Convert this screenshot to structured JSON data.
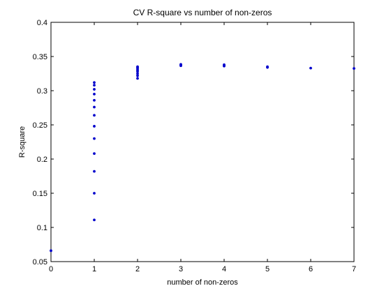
{
  "chart_data": {
    "type": "scatter",
    "title": "CV R-square vs number of non-zeros",
    "xlabel": "number of non-zeros",
    "ylabel": "R-square",
    "xlim": [
      0,
      7
    ],
    "ylim": [
      0.05,
      0.4
    ],
    "xticks": [
      "0",
      "1",
      "2",
      "3",
      "4",
      "5",
      "6",
      "7"
    ],
    "xtick_values": [
      0,
      1,
      2,
      3,
      4,
      5,
      6,
      7
    ],
    "yticks": [
      "0.05",
      "0.1",
      "0.15",
      "0.2",
      "0.25",
      "0.3",
      "0.35",
      "0.4"
    ],
    "ytick_values": [
      0.05,
      0.1,
      0.15,
      0.2,
      0.25,
      0.3,
      0.35,
      0.4
    ],
    "grid": false,
    "marker_color": "#0000cc",
    "points": [
      [
        0,
        0.066
      ],
      [
        1,
        0.111
      ],
      [
        1,
        0.15
      ],
      [
        1,
        0.182
      ],
      [
        1,
        0.208
      ],
      [
        1,
        0.23
      ],
      [
        1,
        0.248
      ],
      [
        1,
        0.264
      ],
      [
        1,
        0.276
      ],
      [
        1,
        0.286
      ],
      [
        1,
        0.295
      ],
      [
        1,
        0.302
      ],
      [
        1,
        0.308
      ],
      [
        1,
        0.312
      ],
      [
        2,
        0.318
      ],
      [
        2,
        0.322
      ],
      [
        2,
        0.325
      ],
      [
        2,
        0.328
      ],
      [
        2,
        0.33
      ],
      [
        2,
        0.332
      ],
      [
        2,
        0.334
      ],
      [
        2,
        0.335
      ],
      [
        3,
        0.3365
      ],
      [
        3,
        0.3375
      ],
      [
        3,
        0.3385
      ],
      [
        4,
        0.336
      ],
      [
        4,
        0.337
      ],
      [
        4,
        0.338
      ],
      [
        5,
        0.334
      ],
      [
        5,
        0.335
      ],
      [
        6,
        0.333
      ],
      [
        7,
        0.3325
      ]
    ]
  }
}
